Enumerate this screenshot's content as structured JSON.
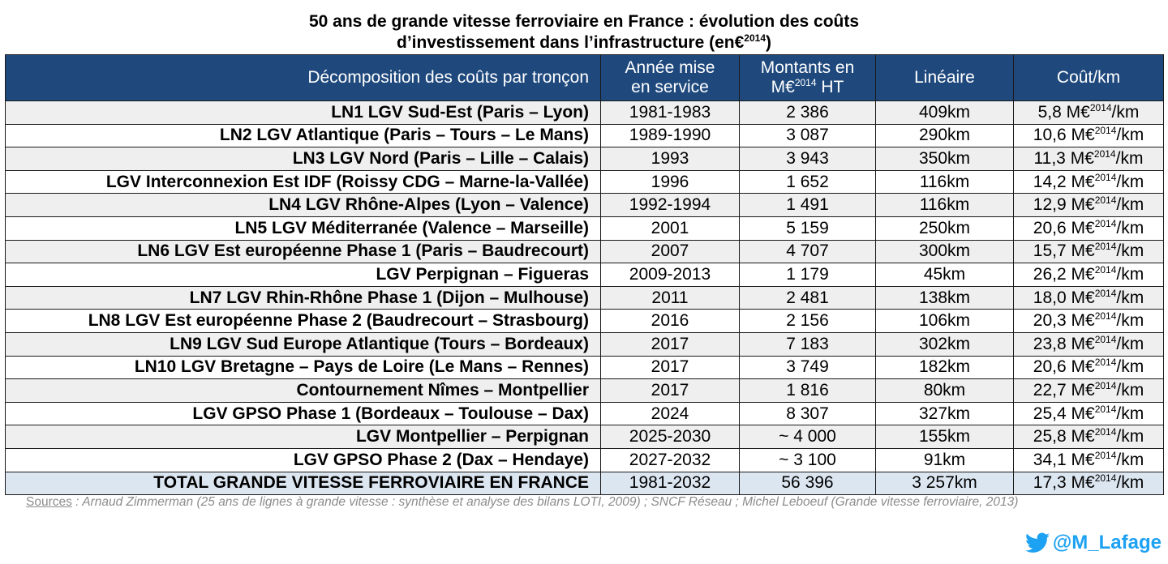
{
  "title": {
    "line1": "50 ans de grande vitesse ferroviaire en France : évolution des coûts",
    "line2_main": "d’investissement dans l’infrastructure (en€",
    "line2_sup": "2014",
    "line2_end": ")"
  },
  "table": {
    "headers": {
      "col1": "Décomposition des coûts par tronçon",
      "col2_line1": "Année mise",
      "col2_line2": "en service",
      "col3_line1": "Montants en",
      "col3_line2_pre": "M€",
      "col3_line2_sup": "2014",
      "col3_line2_post": " HT",
      "col4": "Linéaire",
      "col5": "Coût/km"
    },
    "cost_unit_pre": "M€",
    "cost_unit_sup": "2014",
    "cost_unit_post": "/km",
    "rows": [
      {
        "name": "LN1 LGV Sud-Est (Paris – Lyon)",
        "year": "1981-1983",
        "amount": "2 386",
        "length": "409km",
        "cost": "5,8"
      },
      {
        "name": "LN2 LGV Atlantique (Paris – Tours – Le Mans)",
        "year": "1989-1990",
        "amount": "3 087",
        "length": "290km",
        "cost": "10,6"
      },
      {
        "name": "LN3 LGV Nord (Paris – Lille – Calais)",
        "year": "1993",
        "amount": "3 943",
        "length": "350km",
        "cost": "11,3"
      },
      {
        "name": "LGV Interconnexion Est IDF (Roissy CDG – Marne-la-Vallée)",
        "year": "1996",
        "amount": "1 652",
        "length": "116km",
        "cost": "14,2"
      },
      {
        "name": "LN4 LGV Rhône-Alpes (Lyon – Valence)",
        "year": "1992-1994",
        "amount": "1 491",
        "length": "116km",
        "cost": "12,9"
      },
      {
        "name": "LN5 LGV Méditerranée (Valence – Marseille)",
        "year": "2001",
        "amount": "5 159",
        "length": "250km",
        "cost": "20,6"
      },
      {
        "name": "LN6 LGV Est européenne Phase 1 (Paris – Baudrecourt)",
        "year": "2007",
        "amount": "4 707",
        "length": "300km",
        "cost": "15,7"
      },
      {
        "name": "LGV Perpignan – Figueras",
        "year": "2009-2013",
        "amount": "1 179",
        "length": "45km",
        "cost": "26,2"
      },
      {
        "name": "LN7 LGV Rhin-Rhône Phase 1 (Dijon – Mulhouse)",
        "year": "2011",
        "amount": "2 481",
        "length": "138km",
        "cost": "18,0"
      },
      {
        "name": "LN8 LGV Est européenne Phase 2 (Baudrecourt – Strasbourg)",
        "year": "2016",
        "amount": "2 156",
        "length": "106km",
        "cost": "20,3"
      },
      {
        "name": "LN9 LGV Sud Europe Atlantique (Tours – Bordeaux)",
        "year": "2017",
        "amount": "7 183",
        "length": "302km",
        "cost": "23,8"
      },
      {
        "name": "LN10 LGV Bretagne – Pays de Loire (Le Mans – Rennes)",
        "year": "2017",
        "amount": "3 749",
        "length": "182km",
        "cost": "20,6"
      },
      {
        "name": "Contournement Nîmes – Montpellier",
        "year": "2017",
        "amount": "1 816",
        "length": "80km",
        "cost": "22,7"
      },
      {
        "name": "LGV GPSO Phase 1 (Bordeaux – Toulouse – Dax)",
        "year": "2024",
        "amount": "8 307",
        "length": "327km",
        "cost": "25,4"
      },
      {
        "name": "LGV Montpellier – Perpignan",
        "year": "2025-2030",
        "amount": "~ 4 000",
        "length": "155km",
        "cost": "25,8"
      },
      {
        "name": "LGV GPSO Phase 2 (Dax – Hendaye)",
        "year": "2027-2032",
        "amount": "~ 3 100",
        "length": "91km",
        "cost": "34,1"
      }
    ],
    "total": {
      "name": "TOTAL GRANDE VITESSE FERROVIAIRE EN FRANCE",
      "year": "1981-2032",
      "amount": "56 396",
      "length": "3 257km",
      "cost": "17,3"
    }
  },
  "sources": {
    "label": "Sources",
    "text": " : Arnaud Zimmerman (25 ans de lignes à grande vitesse : synthèse et analyse des bilans LOTI, 2009) ; SNCF Réseau ; Michel Leboeuf (Grande vitesse ferroviaire, 2013)"
  },
  "signature": {
    "handle": "@M_Lafage",
    "icon": "twitter-bird-icon",
    "color": "#1da1f2"
  },
  "colors": {
    "header_bg": "#1f497d",
    "row_alt_bg": "#efefef",
    "total_bg": "#dce6f1"
  }
}
